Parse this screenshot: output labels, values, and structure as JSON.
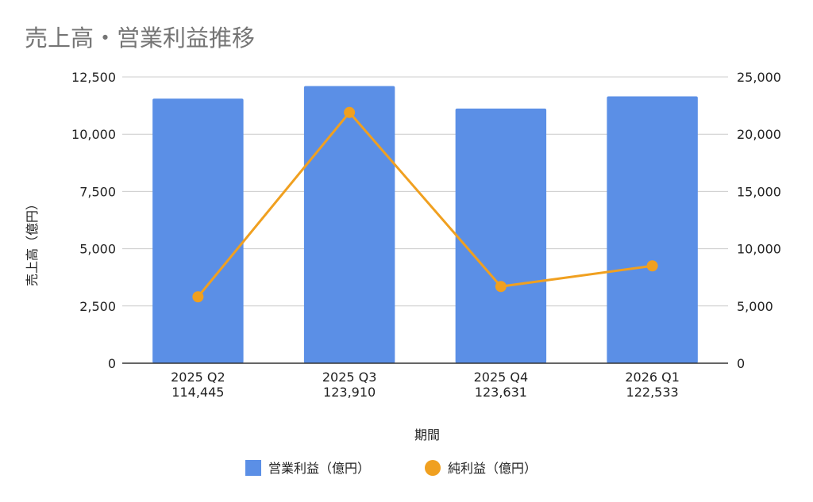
{
  "chart_data": {
    "type": "bar",
    "title": "売上高・営業利益推移",
    "xlabel": "期間",
    "ylabel": "売上高（億円）",
    "categories": [
      [
        "2025 Q2",
        "114,445"
      ],
      [
        "2025 Q3",
        "123,910"
      ],
      [
        "2025 Q4",
        "123,631"
      ],
      [
        "2026 Q1",
        "122,533"
      ]
    ],
    "y_left": {
      "min": 0,
      "max": 12500,
      "ticks": [
        0,
        2500,
        5000,
        7500,
        10000,
        12500
      ],
      "tick_labels": [
        "0",
        "2,500",
        "5,000",
        "7,500",
        "10,000",
        "12,500"
      ]
    },
    "y_right": {
      "min": 0,
      "max": 25000,
      "ticks": [
        0,
        5000,
        10000,
        15000,
        20000,
        25000
      ],
      "tick_labels": [
        "0",
        "5,000",
        "10,000",
        "15,000",
        "20,000",
        "25,000"
      ]
    },
    "series": [
      {
        "name": "営業利益（億円）",
        "type": "bar",
        "axis": "left",
        "color": "#5b8fe6",
        "values": [
          11550,
          12100,
          11120,
          11650
        ]
      },
      {
        "name": "純利益（億円）",
        "type": "line",
        "axis": "right",
        "color": "#f0a020",
        "values": [
          5800,
          21900,
          6700,
          8500
        ]
      }
    ],
    "grid": true,
    "legend": "bottom"
  }
}
